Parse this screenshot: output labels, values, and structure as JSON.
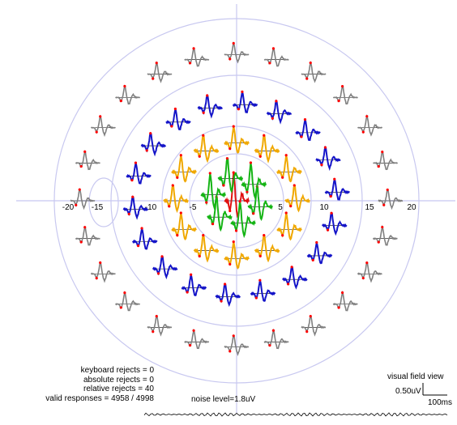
{
  "stats": {
    "keyboard_rejects": "keyboard rejects = 0",
    "absolute_rejects": "absolute rejects = 0",
    "relative_rejects": "relative rejects = 40",
    "valid_responses": "valid responses = 4958 / 4998"
  },
  "noise_level": "noise level=1.8uV",
  "view_label": "visual field view",
  "scale": {
    "amplitude": "0.50uV",
    "time": "100ms"
  },
  "axis_ticks": [
    "-20",
    "-15",
    "-10",
    "-5",
    "5",
    "10",
    "15",
    "20"
  ],
  "colors": {
    "rings": "#c8c8f0",
    "periphery": "#808080",
    "ring2": "#1414c8",
    "ring3": "#f0a800",
    "ring4": "#14b414",
    "center": "#e01010",
    "marker": "#ff0000"
  }
}
